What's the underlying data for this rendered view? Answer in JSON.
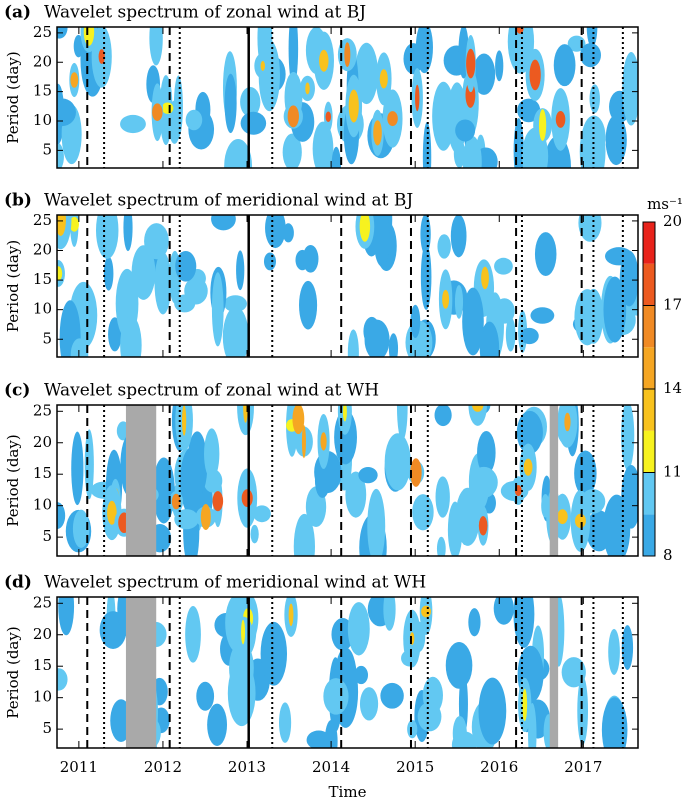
{
  "chart_data": [
    {
      "type": "contour",
      "label": "(a)",
      "title": "Wavelet spectrum of zonal wind at BJ",
      "ylabel": "Period (day)",
      "xlim": [
        2010.74,
        2017.65
      ],
      "ylim": [
        2,
        26
      ],
      "yticks": [
        5,
        10,
        15,
        20,
        25
      ],
      "xticks": [
        2011,
        2012,
        2013,
        2014,
        2015,
        2016,
        2017
      ],
      "vlines": [
        {
          "x": 2011.1,
          "style": "dashed"
        },
        {
          "x": 2011.3,
          "style": "dotted"
        },
        {
          "x": 2012.08,
          "style": "dashed"
        },
        {
          "x": 2012.2,
          "style": "dotted"
        },
        {
          "x": 2013.02,
          "style": "solid"
        },
        {
          "x": 2013.3,
          "style": "dotted"
        },
        {
          "x": 2014.12,
          "style": "dashed"
        },
        {
          "x": 2014.95,
          "style": "dashed"
        },
        {
          "x": 2015.15,
          "style": "dotted"
        },
        {
          "x": 2016.2,
          "style": "dashed"
        },
        {
          "x": 2016.27,
          "style": "dotted"
        },
        {
          "x": 2016.98,
          "style": "dashed"
        },
        {
          "x": 2017.12,
          "style": "dotted"
        },
        {
          "x": 2017.47,
          "style": "dotted"
        }
      ]
    },
    {
      "type": "contour",
      "label": "(b)",
      "title": "Wavelet spectrum of meridional wind at BJ",
      "ylabel": "Period (day)",
      "xlim": [
        2010.74,
        2017.65
      ],
      "ylim": [
        2,
        26
      ],
      "yticks": [
        5,
        10,
        15,
        20,
        25
      ],
      "xticks": [
        2011,
        2012,
        2013,
        2014,
        2015,
        2016,
        2017
      ],
      "vlines": [
        {
          "x": 2011.1,
          "style": "dashed"
        },
        {
          "x": 2011.3,
          "style": "dotted"
        },
        {
          "x": 2012.08,
          "style": "dashed"
        },
        {
          "x": 2012.2,
          "style": "dotted"
        },
        {
          "x": 2013.02,
          "style": "solid"
        },
        {
          "x": 2013.3,
          "style": "dotted"
        },
        {
          "x": 2014.12,
          "style": "dashed"
        },
        {
          "x": 2014.95,
          "style": "dashed"
        },
        {
          "x": 2015.15,
          "style": "dotted"
        },
        {
          "x": 2016.2,
          "style": "dashed"
        },
        {
          "x": 2016.27,
          "style": "dotted"
        },
        {
          "x": 2016.98,
          "style": "dashed"
        },
        {
          "x": 2017.12,
          "style": "dotted"
        },
        {
          "x": 2017.47,
          "style": "dotted"
        }
      ],
      "colorbar": {
        "label": "ms⁻¹",
        "ticks": [
          8,
          11,
          14,
          17,
          20
        ],
        "levels": [
          8,
          9.5,
          11,
          12.5,
          14,
          15.5,
          17,
          18.5,
          20
        ],
        "colors": [
          "#3aa9e6",
          "#62c8f2",
          "#f7f21f",
          "#f8c21d",
          "#f5a623",
          "#f08a24",
          "#ec5a20",
          "#e8231b"
        ]
      }
    },
    {
      "type": "contour",
      "label": "(c)",
      "title": "Wavelet spectrum of zonal wind at WH",
      "ylabel": "Period (day)",
      "xlim": [
        2010.74,
        2017.65
      ],
      "ylim": [
        2,
        26
      ],
      "yticks": [
        5,
        10,
        15,
        20,
        25
      ],
      "xticks": [
        2011,
        2012,
        2013,
        2014,
        2015,
        2016,
        2017
      ],
      "missing": [
        [
          2011.56,
          2011.92
        ],
        [
          2016.6,
          2016.7
        ]
      ],
      "vlines": [
        {
          "x": 2011.1,
          "style": "dashed"
        },
        {
          "x": 2011.3,
          "style": "dotted"
        },
        {
          "x": 2012.08,
          "style": "dashed"
        },
        {
          "x": 2012.2,
          "style": "dotted"
        },
        {
          "x": 2013.02,
          "style": "solid"
        },
        {
          "x": 2013.3,
          "style": "dotted"
        },
        {
          "x": 2014.12,
          "style": "dashed"
        },
        {
          "x": 2014.95,
          "style": "dashed"
        },
        {
          "x": 2015.15,
          "style": "dotted"
        },
        {
          "x": 2016.2,
          "style": "dashed"
        },
        {
          "x": 2016.27,
          "style": "dotted"
        },
        {
          "x": 2016.98,
          "style": "dashed"
        },
        {
          "x": 2017.12,
          "style": "dotted"
        },
        {
          "x": 2017.47,
          "style": "dotted"
        }
      ]
    },
    {
      "type": "contour",
      "label": "(d)",
      "title": "Wavelet spectrum of meridional wind at WH",
      "ylabel": "Period (day)",
      "xlabel": "Time",
      "xlim": [
        2010.74,
        2017.65
      ],
      "ylim": [
        2,
        26
      ],
      "yticks": [
        5,
        10,
        15,
        20,
        25
      ],
      "xticks": [
        2011,
        2012,
        2013,
        2014,
        2015,
        2016,
        2017
      ],
      "xticklabels": true,
      "missing": [
        [
          2011.56,
          2011.92
        ],
        [
          2016.6,
          2016.7
        ]
      ],
      "vlines": [
        {
          "x": 2011.1,
          "style": "dashed"
        },
        {
          "x": 2011.3,
          "style": "dotted"
        },
        {
          "x": 2012.08,
          "style": "dashed"
        },
        {
          "x": 2012.2,
          "style": "dotted"
        },
        {
          "x": 2013.02,
          "style": "solid"
        },
        {
          "x": 2013.3,
          "style": "dotted"
        },
        {
          "x": 2014.12,
          "style": "dashed"
        },
        {
          "x": 2014.95,
          "style": "dashed"
        },
        {
          "x": 2015.15,
          "style": "dotted"
        },
        {
          "x": 2016.2,
          "style": "dashed"
        },
        {
          "x": 2016.27,
          "style": "dotted"
        },
        {
          "x": 2016.98,
          "style": "dashed"
        },
        {
          "x": 2017.12,
          "style": "dotted"
        },
        {
          "x": 2017.47,
          "style": "dotted"
        }
      ]
    }
  ]
}
